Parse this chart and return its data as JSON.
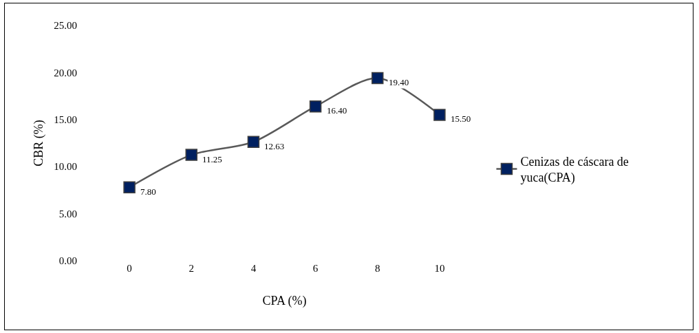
{
  "chart_data": {
    "type": "line",
    "xlabel": "CPA (%)",
    "ylabel": "CBR (%)",
    "categories": [
      "0",
      "2",
      "4",
      "6",
      "8",
      "10"
    ],
    "series": [
      {
        "name": "Cenizas de cáscara de yuca(CPA)",
        "color": "#002060",
        "values": [
          7.8,
          11.25,
          12.63,
          16.4,
          19.4,
          15.5
        ],
        "value_labels": [
          "7.80",
          "11.25",
          "12.63",
          "16.40",
          "19.40",
          "15.50"
        ]
      }
    ],
    "marker": "square",
    "line_style": "solid",
    "grid": false,
    "legend": "right",
    "ylim": [
      0,
      25
    ],
    "yticks": [
      {
        "value": 0,
        "label": "0.00"
      },
      {
        "value": 5,
        "label": "5.00"
      },
      {
        "value": 10,
        "label": "10.00"
      },
      {
        "value": 15,
        "label": "15.00"
      },
      {
        "value": 20,
        "label": "20.00"
      },
      {
        "value": 25,
        "label": "25.00"
      }
    ]
  }
}
